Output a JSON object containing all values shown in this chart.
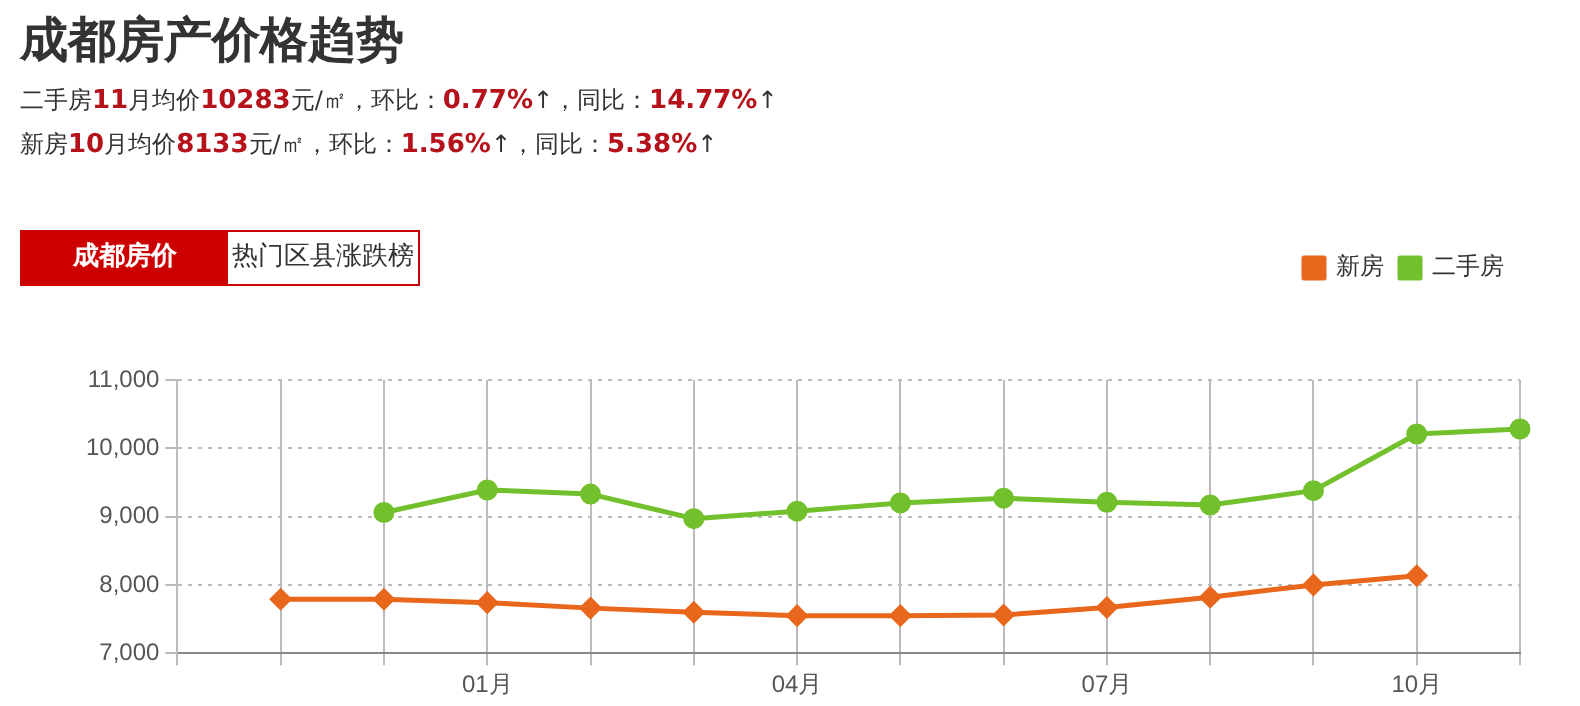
{
  "chart_data": {
    "type": "line",
    "title": "成都房产价格趋势",
    "annotations": [
      "二手房11月均价10283元/㎡，环比：0.77%↑，同比：14.77%↑",
      "新房10月均价8133元/㎡，环比：1.56%↑，同比：5.38%↑",
      "成都房价",
      "热门区县涨跌榜"
    ],
    "categories": [
      null,
      null,
      null,
      "01月",
      null,
      null,
      "04月",
      null,
      null,
      "07月",
      null,
      null,
      "10月",
      null
    ],
    "series": [
      {
        "name": "新房",
        "color": "#e8671c",
        "marker": "diamond",
        "values": [
          null,
          7790,
          7790,
          7740,
          7660,
          7600,
          7550,
          7550,
          7560,
          7670,
          7820,
          8000,
          8133,
          null
        ]
      },
      {
        "name": "二手房",
        "color": "#72c02c",
        "marker": "circle",
        "values": [
          null,
          null,
          9060,
          9390,
          9330,
          8970,
          9080,
          9200,
          9270,
          9210,
          9170,
          9380,
          10210,
          10283
        ]
      }
    ],
    "ylim": [
      7000,
      11000
    ],
    "yticks": [
      {
        "value": 7000,
        "label": "7,000"
      },
      {
        "value": 8000,
        "label": "8,000"
      },
      {
        "value": 9000,
        "label": "9,000"
      },
      {
        "value": 10000,
        "label": "10,000"
      },
      {
        "value": 11000,
        "label": "11,000"
      }
    ],
    "grid": true,
    "legend": "top right"
  }
}
